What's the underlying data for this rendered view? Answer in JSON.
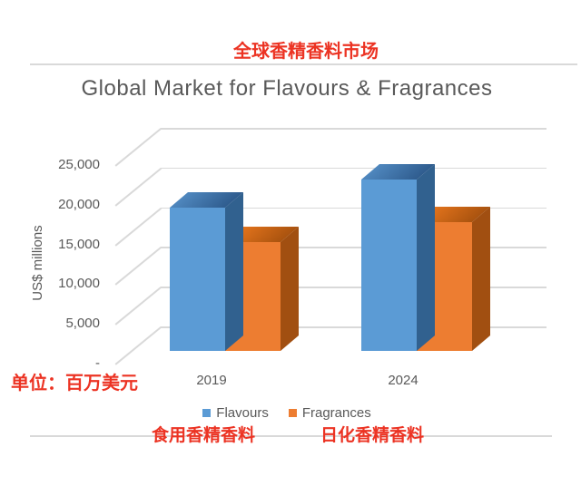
{
  "annotations": {
    "title_cn": "全球香精香料市场",
    "unit_note": "单位：百万美元",
    "flavours_note": "食用香精香料",
    "fragrances_note": "日化香精香料"
  },
  "chart_data": {
    "type": "bar",
    "variant": "3d-column",
    "title": "Global Market for Flavours & Fragrances",
    "xlabel": "",
    "ylabel": "US$ millions",
    "categories": [
      "2019",
      "2024"
    ],
    "series": [
      {
        "name": "Flavours",
        "color": "#5b9bd5",
        "values": [
          18000,
          21600
        ]
      },
      {
        "name": "Fragrances",
        "color": "#ed7d31",
        "values": [
          13700,
          16200
        ]
      }
    ],
    "yticks": [
      0,
      5000,
      10000,
      15000,
      20000,
      25000
    ],
    "ytick_labels": [
      "-",
      "5,000",
      "10,000",
      "15,000",
      "20,000",
      "25,000"
    ],
    "ylim": [
      0,
      27000
    ],
    "grid": true,
    "legend_position": "bottom",
    "units": "US$ millions"
  },
  "colors": {
    "annotation_red": "#ec3323",
    "axis_text": "#595959",
    "gridline": "#d9d9d9",
    "flavours_front": "#5b9bd5",
    "flavours_top_left": "#4f87be",
    "flavours_top_right": "#2f5c8e",
    "flavours_side": "#31618f",
    "fragrances_front": "#ed7d31",
    "fragrances_top_left": "#e2731c",
    "fragrances_top_right": "#a9530f",
    "fragrances_side": "#a14f11"
  }
}
